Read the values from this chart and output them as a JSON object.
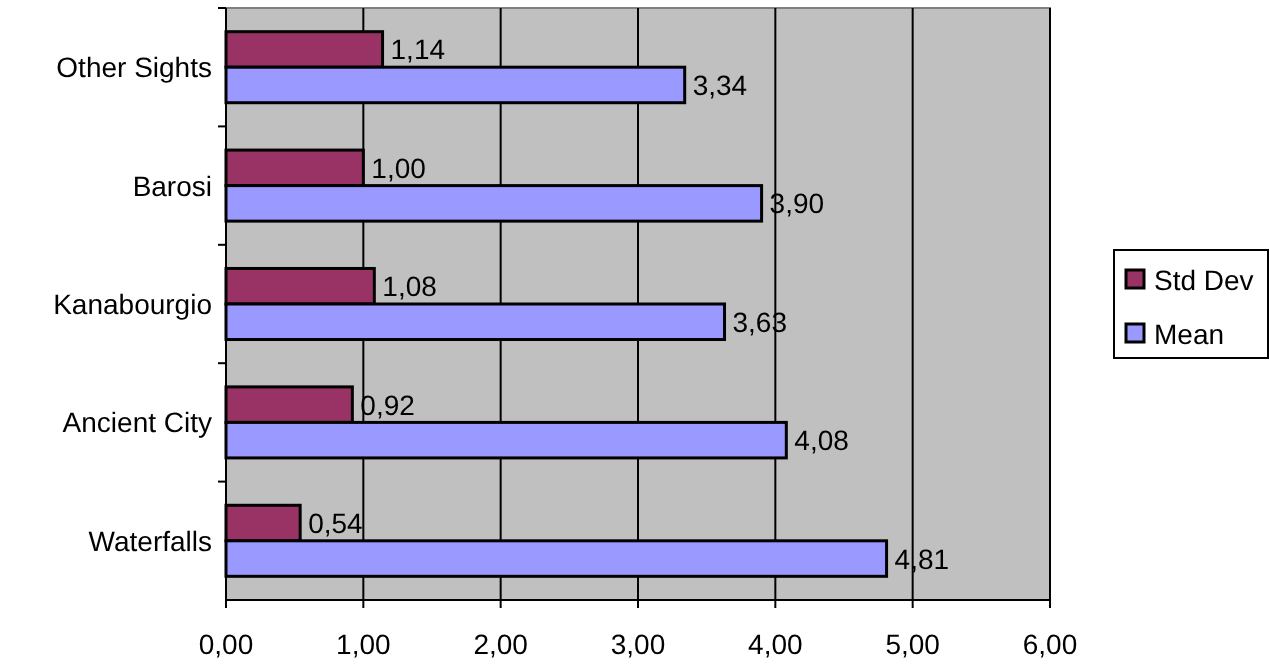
{
  "chart_data": {
    "type": "bar",
    "orientation": "horizontal",
    "categories": [
      "Other Sights",
      "Barosi",
      "Kanabourgio",
      "Ancient City",
      "Waterfalls"
    ],
    "series": [
      {
        "name": "Std Dev",
        "color": "#993366",
        "values": [
          1.14,
          1.0,
          1.08,
          0.92,
          0.54
        ],
        "value_labels": [
          "1,14",
          "1,00",
          "1,08",
          "0,92",
          "0,54"
        ]
      },
      {
        "name": "Mean",
        "color": "#9999ff",
        "values": [
          3.34,
          3.9,
          3.63,
          4.08,
          4.81
        ],
        "value_labels": [
          "3,34",
          "3,90",
          "3,63",
          "4,08",
          "4,81"
        ]
      }
    ],
    "xlim": [
      0,
      6
    ],
    "xticks": [
      {
        "value": 0,
        "label": "0,00"
      },
      {
        "value": 1,
        "label": "1,00"
      },
      {
        "value": 2,
        "label": "2,00"
      },
      {
        "value": 3,
        "label": "3,00"
      },
      {
        "value": 4,
        "label": "4,00"
      },
      {
        "value": 5,
        "label": "5,00"
      },
      {
        "value": 6,
        "label": "6,00"
      }
    ],
    "grid": "x",
    "legend": "right"
  }
}
